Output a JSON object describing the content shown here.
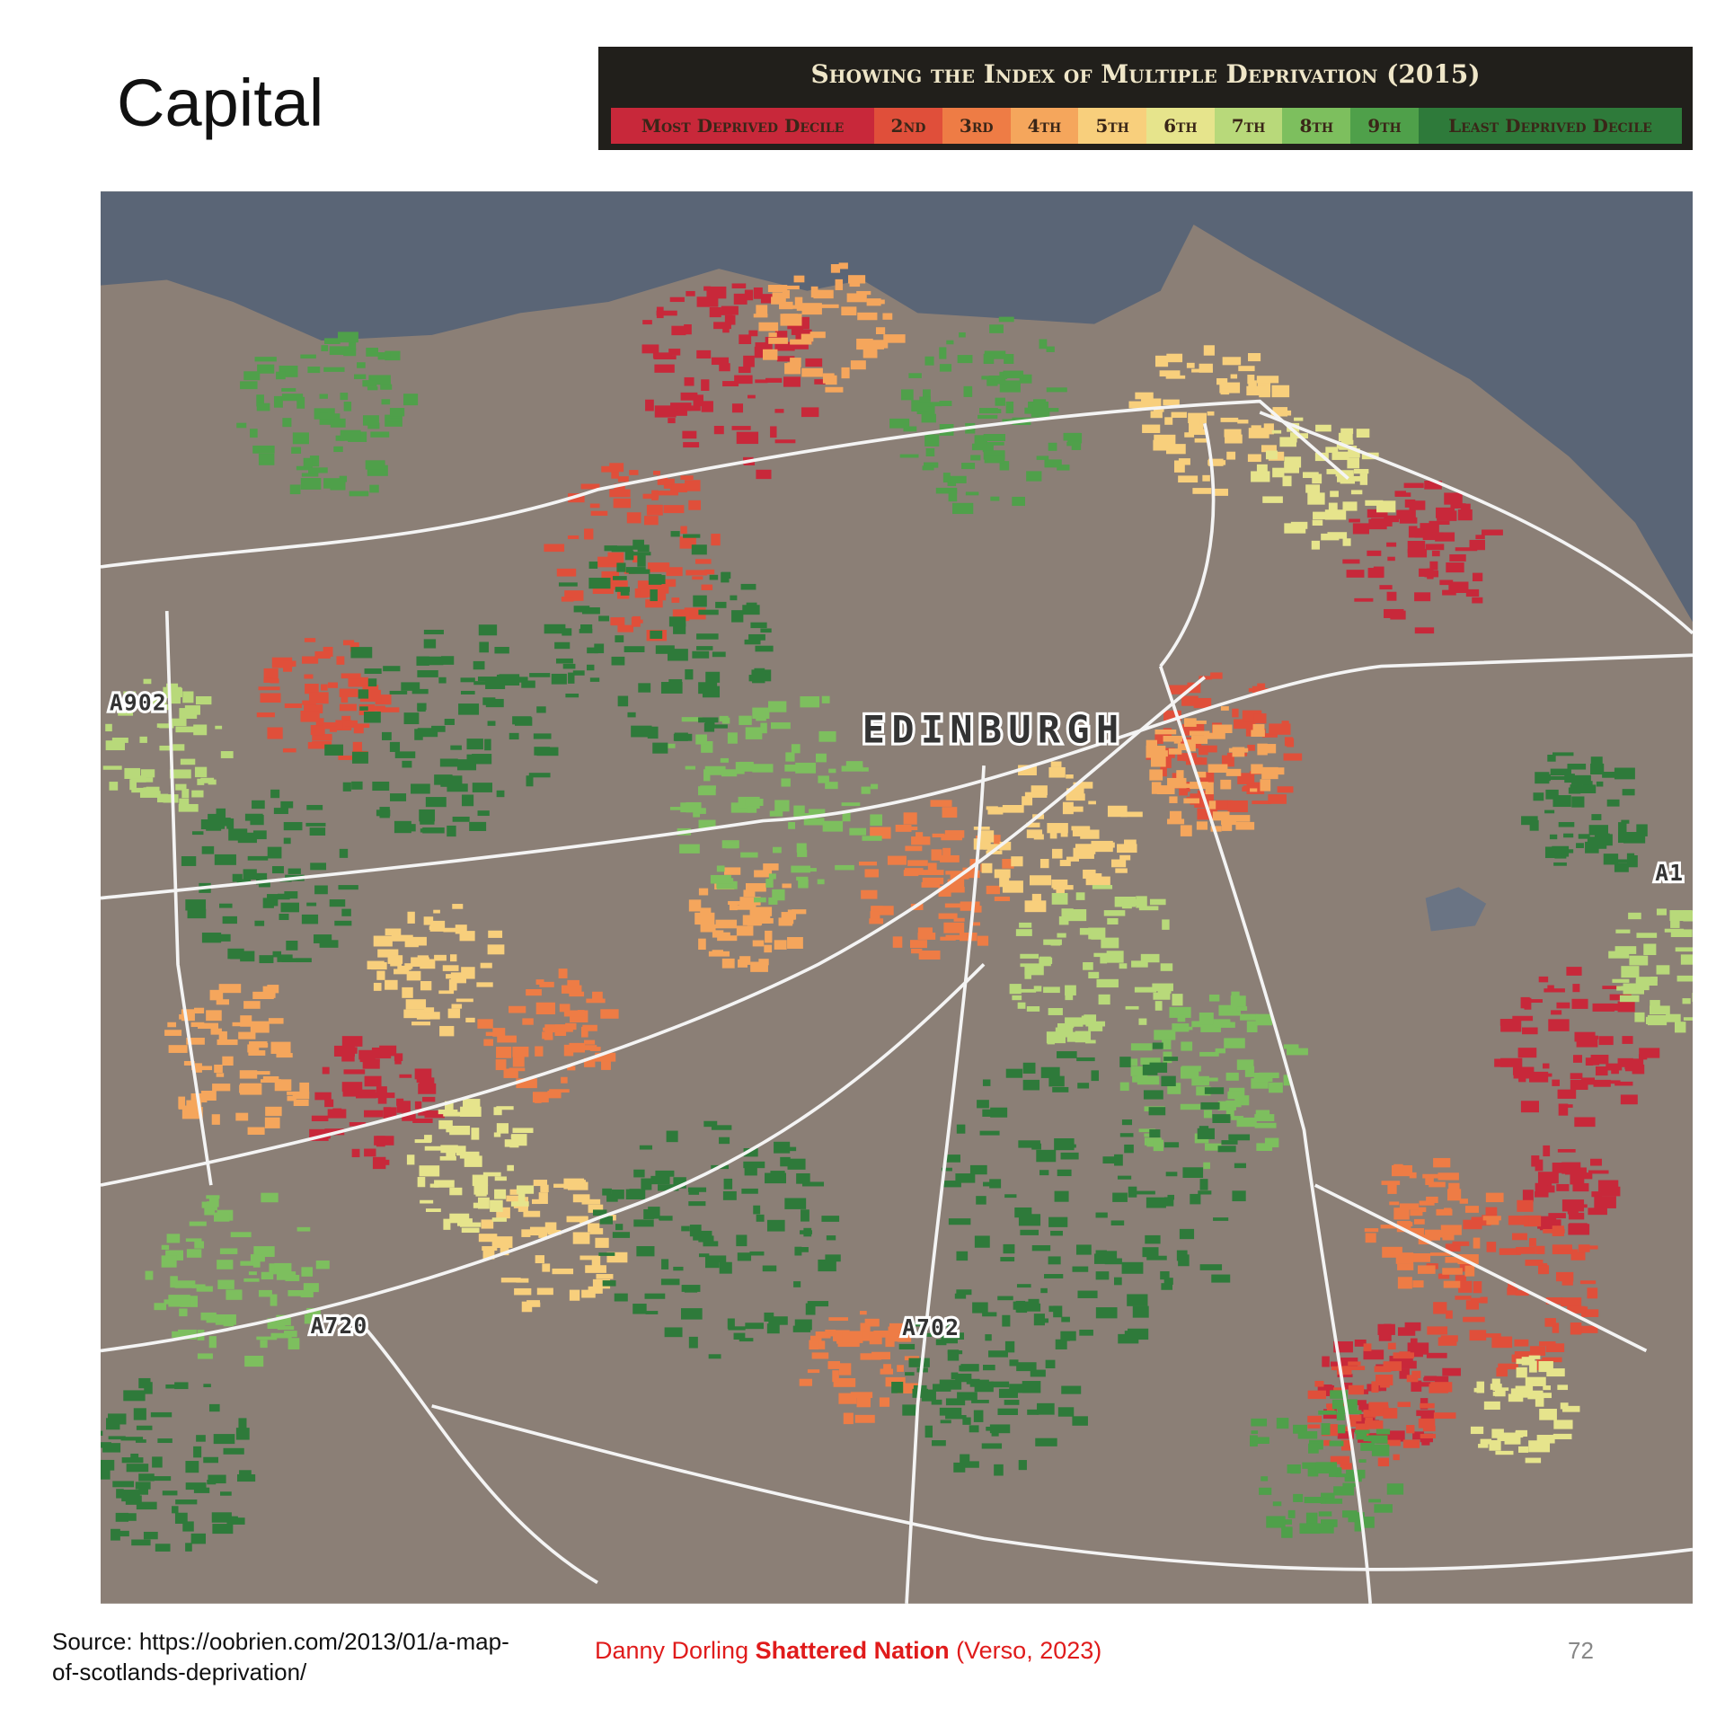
{
  "title": "Capital",
  "legend": {
    "title": "Showing the Index of Multiple Deprivation (2015)",
    "items": [
      {
        "label": "Most Deprived Decile",
        "color": "#c8283a"
      },
      {
        "label": "2nd",
        "color": "#e04f3a"
      },
      {
        "label": "3rd",
        "color": "#ee7c45"
      },
      {
        "label": "4th",
        "color": "#f5a65c"
      },
      {
        "label": "5th",
        "color": "#f8cf7c"
      },
      {
        "label": "6th",
        "color": "#e6e48c"
      },
      {
        "label": "7th",
        "color": "#b8d97a"
      },
      {
        "label": "8th",
        "color": "#7dbf5e"
      },
      {
        "label": "9th",
        "color": "#4fa04a"
      },
      {
        "label": "Least Deprived Decile",
        "color": "#2e7a3a"
      }
    ]
  },
  "map": {
    "labels": [
      "EDINBURGH",
      "A902",
      "A720",
      "A702",
      "A1"
    ]
  },
  "footer": {
    "source": "Source: https://oobrien.com/2013/01/a-map-of-scotlands-deprivation/",
    "credit": {
      "author": "Danny Dorling",
      "book": "Shattered Nation",
      "publisher": "(Verso, 2023)"
    },
    "page": "72"
  }
}
